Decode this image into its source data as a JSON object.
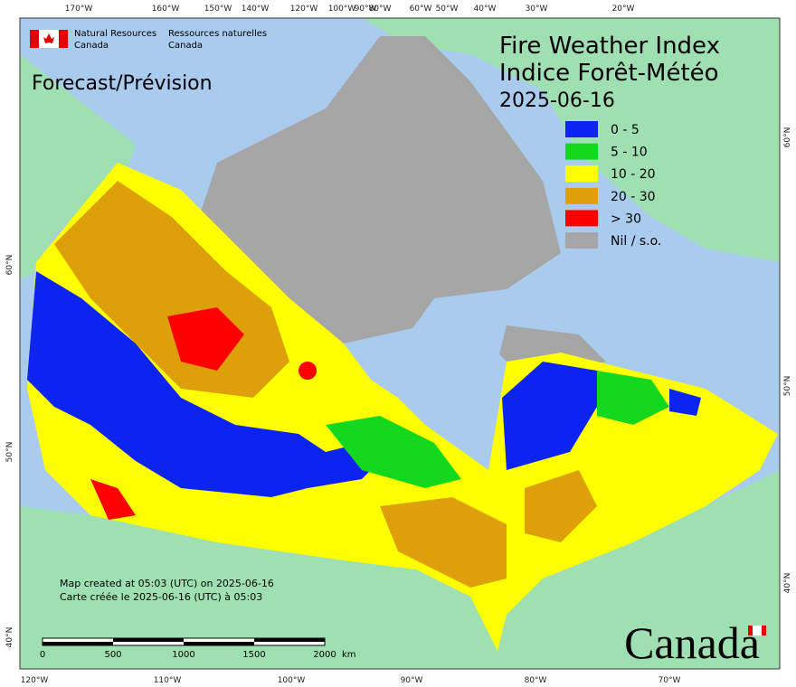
{
  "agency": {
    "en": "Natural Resources",
    "en2": "Canada",
    "fr": "Ressources naturelles",
    "fr2": "Canada"
  },
  "forecast_label": "Forecast/Prévision",
  "title": {
    "line1": "Fire Weather Index",
    "line2": "Indice Forêt-Météo",
    "date": "2025-06-16"
  },
  "legend": [
    {
      "label": "0 - 5",
      "color": "#0b24f0"
    },
    {
      "label": "5 - 10",
      "color": "#13d81e"
    },
    {
      "label": "10 - 20",
      "color": "#ffff00"
    },
    {
      "label": "20 - 30",
      "color": "#dea00a"
    },
    {
      "label": "> 30",
      "color": "#ff0000"
    },
    {
      "label": "Nil / s.o.",
      "color": "#a6a6a6"
    }
  ],
  "graticule": {
    "top": [
      "170°W",
      "160°W",
      "150°W",
      "140°W",
      "120°W",
      "100°W",
      "90°W",
      "80°W",
      "60°W",
      "50°W",
      "40°W",
      "30°W",
      "20°W"
    ],
    "bottom": [
      "120°W",
      "110°W",
      "100°W",
      "90°W",
      "80°W",
      "70°W"
    ],
    "left": [
      "60°N",
      "50°N",
      "40°N"
    ],
    "right": [
      "60°N",
      "50°N",
      "40°N"
    ]
  },
  "credits": {
    "en": "Map created at 05:03 (UTC) on 2025-06-16",
    "fr": "Carte créée le 2025-06-16 (UTC) à 05:03"
  },
  "scale_bar": {
    "ticks": [
      "0",
      "500",
      "1000",
      "1500",
      "2000"
    ],
    "unit": "km"
  },
  "wordmark": "Canada"
}
